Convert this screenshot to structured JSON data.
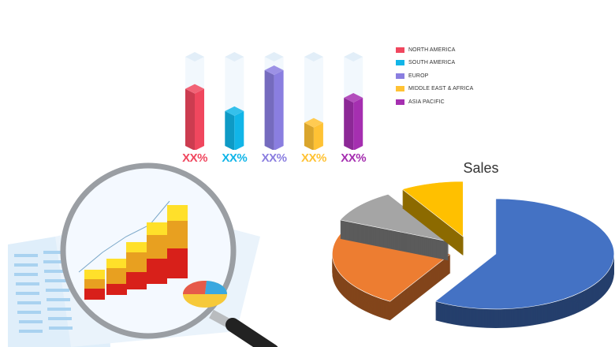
{
  "chart_data": [
    {
      "type": "bar",
      "categories": [
        "NORTH AMERICA",
        "SOUTH AMERICA",
        "EUROP",
        "MIDDLE EAST & AFRICA",
        "ASIA PACIFIC"
      ],
      "values": [
        0.64,
        0.39,
        0.85,
        0.26,
        0.54
      ],
      "value_labels": [
        "XX%",
        "XX%",
        "XX%",
        "XX%",
        "XX%"
      ],
      "colors": [
        "#f0475e",
        "#11b5e8",
        "#8a7ee0",
        "#ffc234",
        "#a52fb0"
      ],
      "legend": "right"
    },
    {
      "type": "pie",
      "title": "Sales",
      "values": [
        58.6,
        22.9,
        10.0,
        8.6
      ],
      "colors": [
        "#4472c4",
        "#ed7d31",
        "#a5a5a5",
        "#ffc000"
      ],
      "style": "3d-exploded"
    }
  ]
}
